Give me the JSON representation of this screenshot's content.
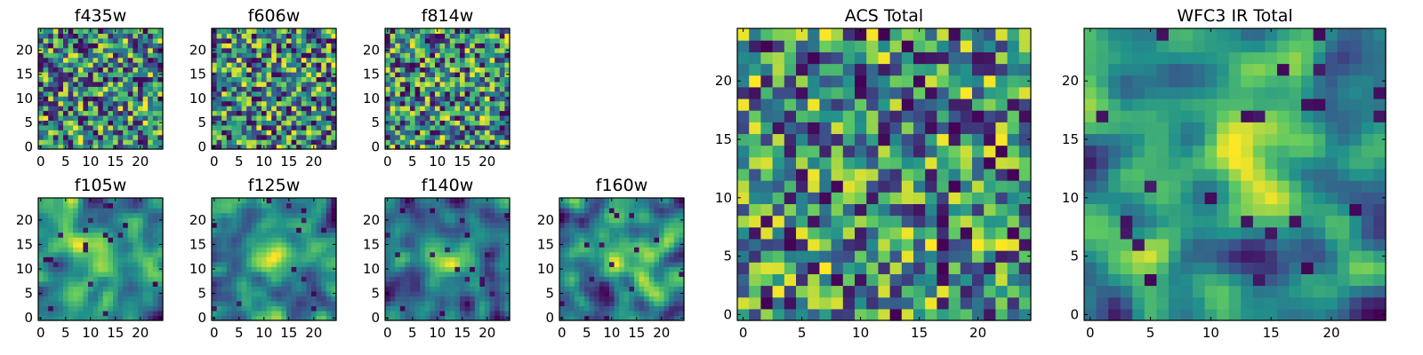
{
  "figure": {
    "colormap": "viridis",
    "colormap_stops": [
      "#440154",
      "#3b528b",
      "#21918c",
      "#5ec962",
      "#fde725"
    ]
  },
  "chart_data": [
    {
      "type": "heatmap",
      "title": "f435w",
      "grid": [
        25,
        25
      ],
      "xlim": [
        0,
        24
      ],
      "ylim": [
        0,
        24
      ],
      "xticks": [
        0,
        5,
        10,
        15,
        20
      ],
      "yticks": [
        0,
        5,
        10,
        15,
        20
      ],
      "texture": "noise",
      "seed": 11
    },
    {
      "type": "heatmap",
      "title": "f606w",
      "grid": [
        25,
        25
      ],
      "xlim": [
        0,
        24
      ],
      "ylim": [
        0,
        24
      ],
      "xticks": [
        0,
        5,
        10,
        15,
        20
      ],
      "yticks": [
        0,
        5,
        10,
        15,
        20
      ],
      "texture": "noise",
      "seed": 23
    },
    {
      "type": "heatmap",
      "title": "f814w",
      "grid": [
        25,
        25
      ],
      "xlim": [
        0,
        24
      ],
      "ylim": [
        0,
        24
      ],
      "xticks": [
        0,
        5,
        10,
        15,
        20
      ],
      "yticks": [
        0,
        5,
        10,
        15,
        20
      ],
      "texture": "noise",
      "seed": 37
    },
    {
      "type": "heatmap",
      "title": "f105w",
      "grid": [
        25,
        25
      ],
      "xlim": [
        0,
        24
      ],
      "ylim": [
        0,
        24
      ],
      "xticks": [
        0,
        5,
        10,
        15,
        20
      ],
      "yticks": [
        0,
        5,
        10,
        15,
        20
      ],
      "texture": "smooth",
      "seed": 41
    },
    {
      "type": "heatmap",
      "title": "f125w",
      "grid": [
        25,
        25
      ],
      "xlim": [
        0,
        24
      ],
      "ylim": [
        0,
        24
      ],
      "xticks": [
        0,
        5,
        10,
        15,
        20
      ],
      "yticks": [
        0,
        5,
        10,
        15,
        20
      ],
      "texture": "smooth",
      "seed": 53
    },
    {
      "type": "heatmap",
      "title": "f140w",
      "grid": [
        25,
        25
      ],
      "xlim": [
        0,
        24
      ],
      "ylim": [
        0,
        24
      ],
      "xticks": [
        0,
        5,
        10,
        15,
        20
      ],
      "yticks": [
        0,
        5,
        10,
        15,
        20
      ],
      "texture": "smooth",
      "seed": 67
    },
    {
      "type": "heatmap",
      "title": "f160w",
      "grid": [
        25,
        25
      ],
      "xlim": [
        0,
        24
      ],
      "ylim": [
        0,
        24
      ],
      "xticks": [
        0,
        5,
        10,
        15,
        20
      ],
      "yticks": [
        0,
        5,
        10,
        15,
        20
      ],
      "texture": "smooth",
      "seed": 79
    },
    {
      "type": "heatmap",
      "title": "ACS Total",
      "grid": [
        25,
        25
      ],
      "xlim": [
        0,
        24
      ],
      "ylim": [
        0,
        24
      ],
      "xticks": [
        0,
        5,
        10,
        15,
        20
      ],
      "yticks": [
        0,
        5,
        10,
        15,
        20
      ],
      "texture": "noise",
      "seed": 97
    },
    {
      "type": "heatmap",
      "title": "WFC3 IR Total",
      "grid": [
        25,
        25
      ],
      "xlim": [
        0,
        24
      ],
      "ylim": [
        0,
        24
      ],
      "xticks": [
        0,
        5,
        10,
        15,
        20
      ],
      "yticks": [
        0,
        5,
        10,
        15,
        20
      ],
      "texture": "smooth",
      "seed": 131
    }
  ]
}
